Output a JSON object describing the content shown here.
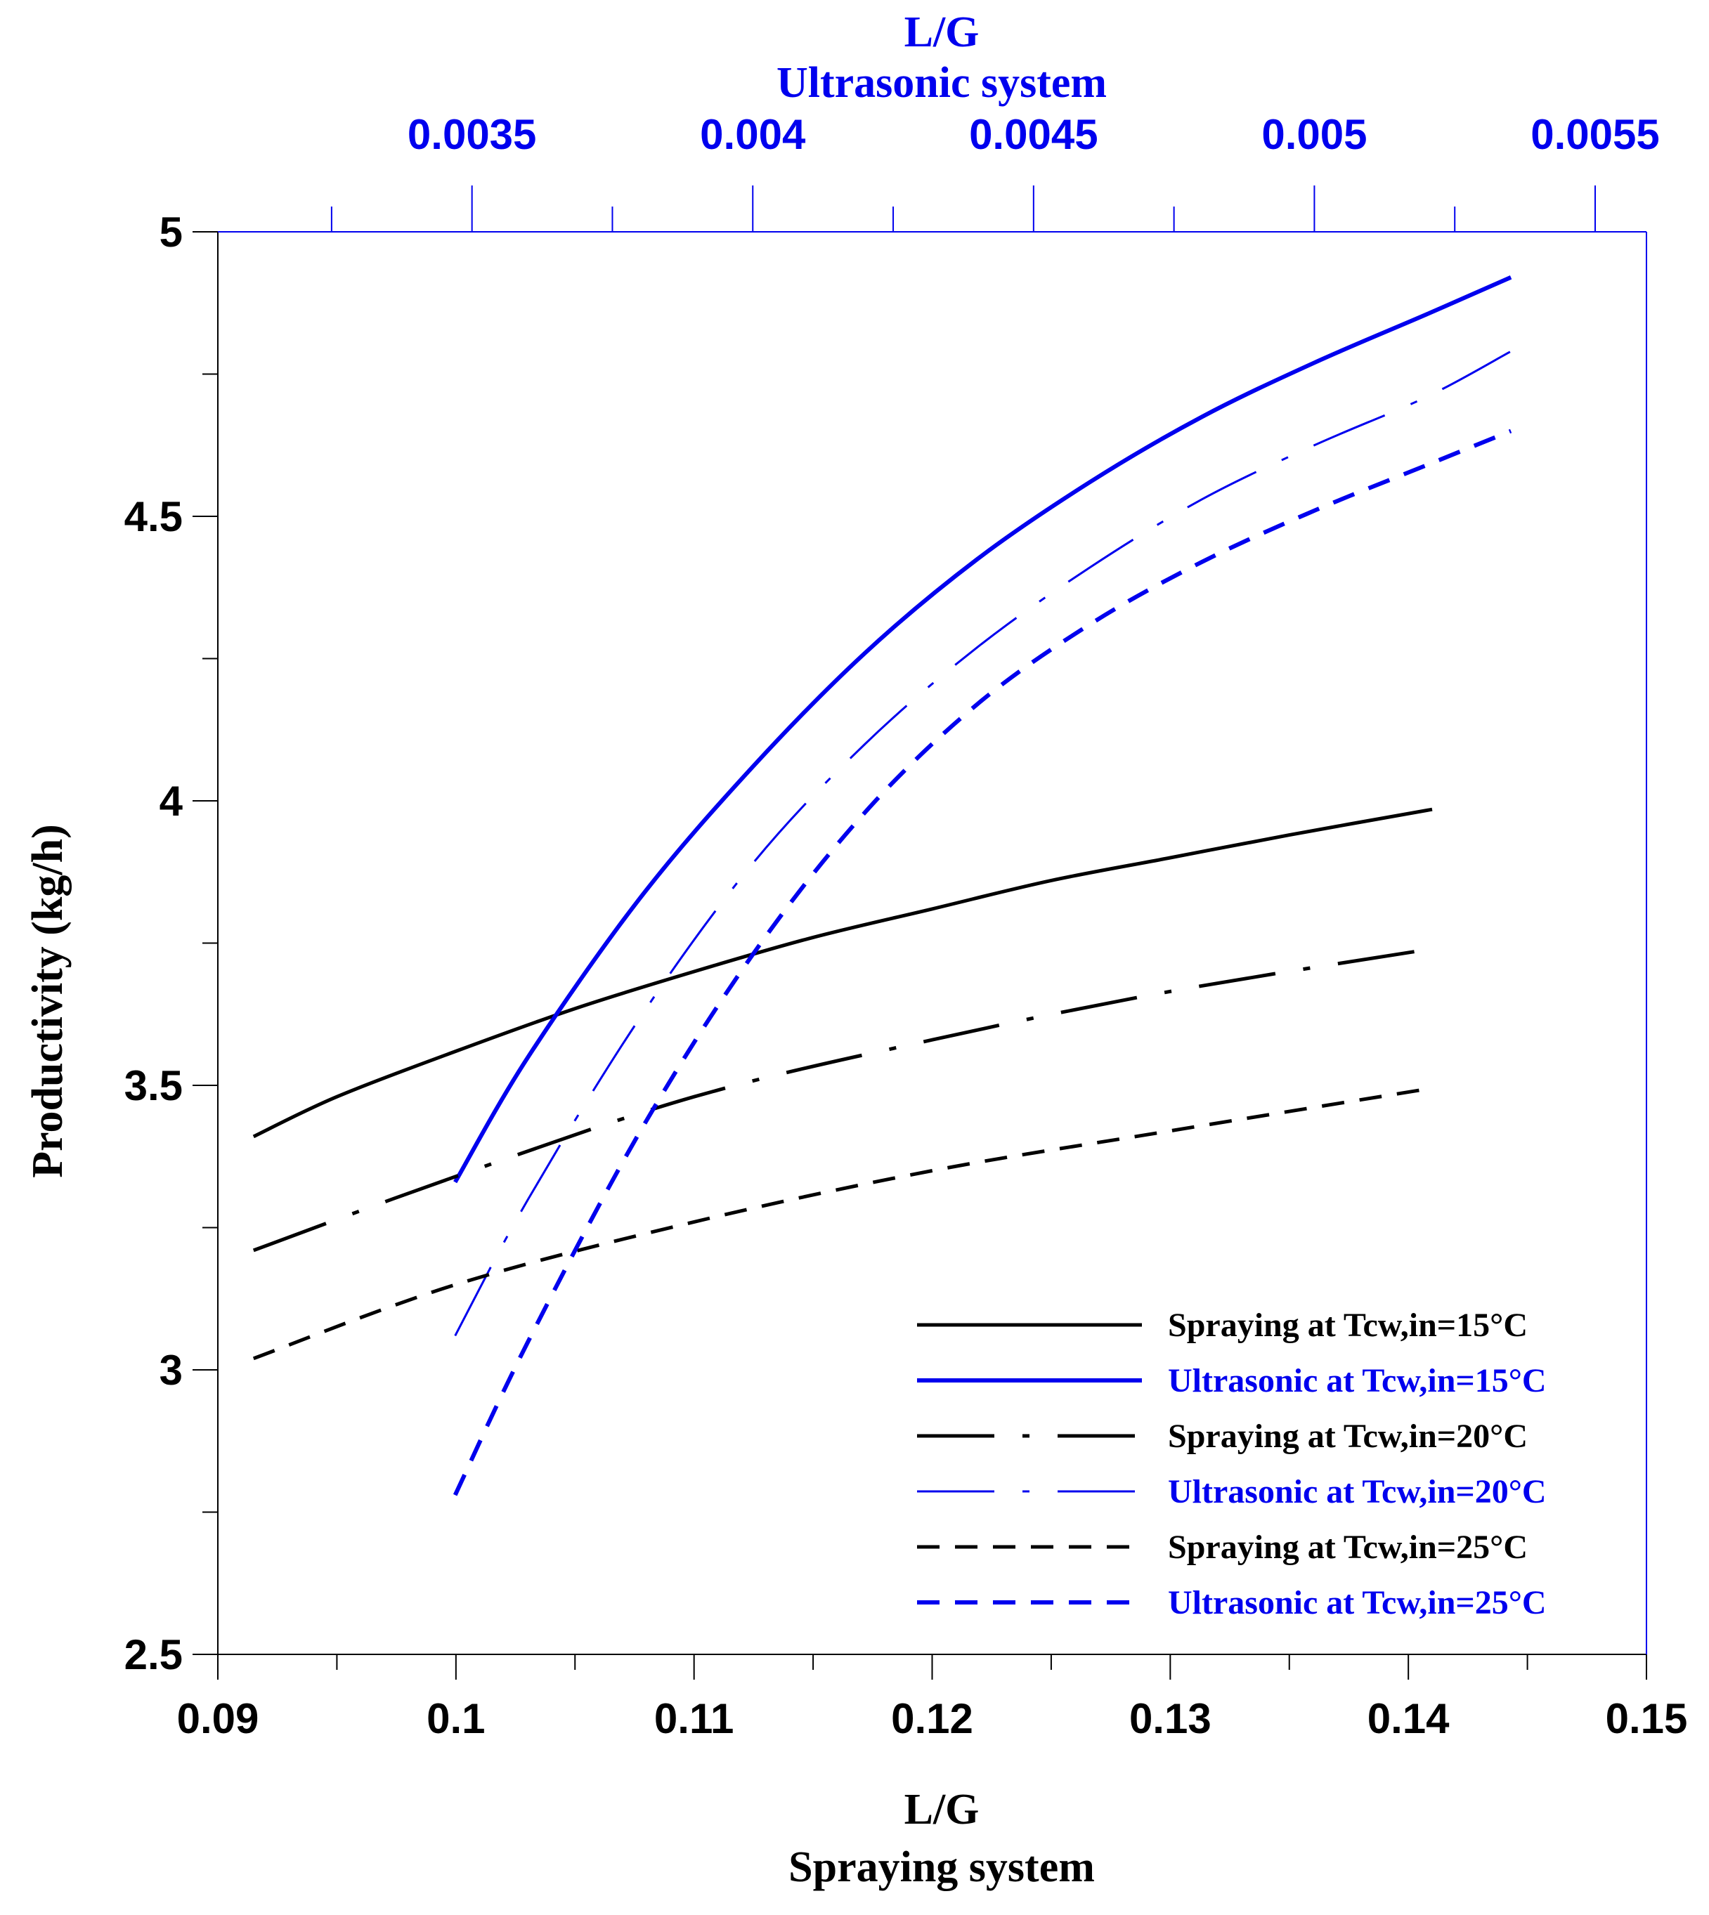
{
  "chart_data": {
    "type": "line",
    "colors": {
      "spraying": "#000000",
      "ultrasonic": "#0000ee",
      "top_axis": "#0000ee"
    },
    "x_bottom": {
      "label_line1": "L/G",
      "label_line2": "Spraying system",
      "range": [
        0.09,
        0.15
      ],
      "ticks": [
        "0.09",
        "0.1",
        "0.11",
        "0.12",
        "0.13",
        "0.14",
        "0.15"
      ],
      "tick_values": [
        0.09,
        0.1,
        0.11,
        0.12,
        0.13,
        0.14,
        0.15
      ]
    },
    "x_top": {
      "label_line1": "L/G",
      "label_line2": "Ultrasonic system",
      "range": [
        0.0031,
        0.0055
      ],
      "ticks": [
        "0.0035",
        "0.004",
        "0.0045",
        "0.005",
        "0.0055"
      ],
      "tick_values": [
        0.0035,
        0.004,
        0.0045,
        0.005,
        0.0055
      ]
    },
    "y": {
      "label": "Productivity (kg/h)",
      "range": [
        2.5,
        5
      ],
      "ticks": [
        "2.5",
        "3",
        "3.5",
        "4",
        "4.5",
        "5"
      ],
      "tick_values": [
        2.5,
        3,
        3.5,
        4,
        4.5,
        5
      ]
    },
    "legend_position": "bottom-right",
    "series": [
      {
        "name": "Spraying at Tcw,in=15°C",
        "axis": "bottom",
        "color": "#000000",
        "dash": "solid",
        "width": 5,
        "x": [
          0.0915,
          0.095,
          0.1,
          0.105,
          0.11,
          0.115,
          0.12,
          0.125,
          0.13,
          0.135,
          0.141
        ],
        "y": [
          3.41,
          3.48,
          3.56,
          3.635,
          3.7,
          3.76,
          3.81,
          3.86,
          3.9,
          3.94,
          3.985
        ]
      },
      {
        "name": "Ultrasonic at Tcw,in=15°C",
        "axis": "top",
        "color": "#0000ee",
        "dash": "solid",
        "width": 6,
        "x": [
          0.00347,
          0.0036,
          0.0038,
          0.004,
          0.0042,
          0.0044,
          0.0046,
          0.0048,
          0.005,
          0.0052,
          0.00535
        ],
        "y": [
          3.33,
          3.55,
          3.83,
          4.06,
          4.26,
          4.425,
          4.56,
          4.675,
          4.77,
          4.855,
          4.92
        ]
      },
      {
        "name": "Spraying at Tcw,in=20°C",
        "axis": "bottom",
        "color": "#000000",
        "dash": "longdashdot",
        "width": 5,
        "x": [
          0.0915,
          0.1,
          0.11,
          0.12,
          0.13,
          0.141
        ],
        "y": [
          3.21,
          3.34,
          3.48,
          3.58,
          3.665,
          3.74
        ]
      },
      {
        "name": "Ultrasonic at Tcw,in=20°C",
        "axis": "top",
        "color": "#0000ee",
        "dash": "longdashdot",
        "width": 3,
        "x": [
          0.00347,
          0.0036,
          0.0038,
          0.004,
          0.0042,
          0.0044,
          0.0046,
          0.0048,
          0.005,
          0.0052,
          0.00535
        ],
        "y": [
          3.06,
          3.3,
          3.62,
          3.89,
          4.1,
          4.27,
          4.41,
          4.53,
          4.625,
          4.71,
          4.79
        ]
      },
      {
        "name": "Spraying at Tcw,in=25°C",
        "axis": "bottom",
        "color": "#000000",
        "dash": "dash",
        "width": 5,
        "x": [
          0.0915,
          0.1,
          0.11,
          0.12,
          0.13,
          0.141
        ],
        "y": [
          3.02,
          3.15,
          3.26,
          3.35,
          3.42,
          3.495
        ]
      },
      {
        "name": "Ultrasonic at Tcw,in=25°C",
        "axis": "top",
        "color": "#0000ee",
        "dash": "dash",
        "width": 6,
        "x": [
          0.00347,
          0.0036,
          0.0038,
          0.004,
          0.0042,
          0.0044,
          0.0046,
          0.0048,
          0.005,
          0.0052,
          0.00535
        ],
        "y": [
          2.78,
          3.05,
          3.42,
          3.73,
          3.98,
          4.17,
          4.31,
          4.42,
          4.51,
          4.59,
          4.65
        ]
      }
    ]
  }
}
